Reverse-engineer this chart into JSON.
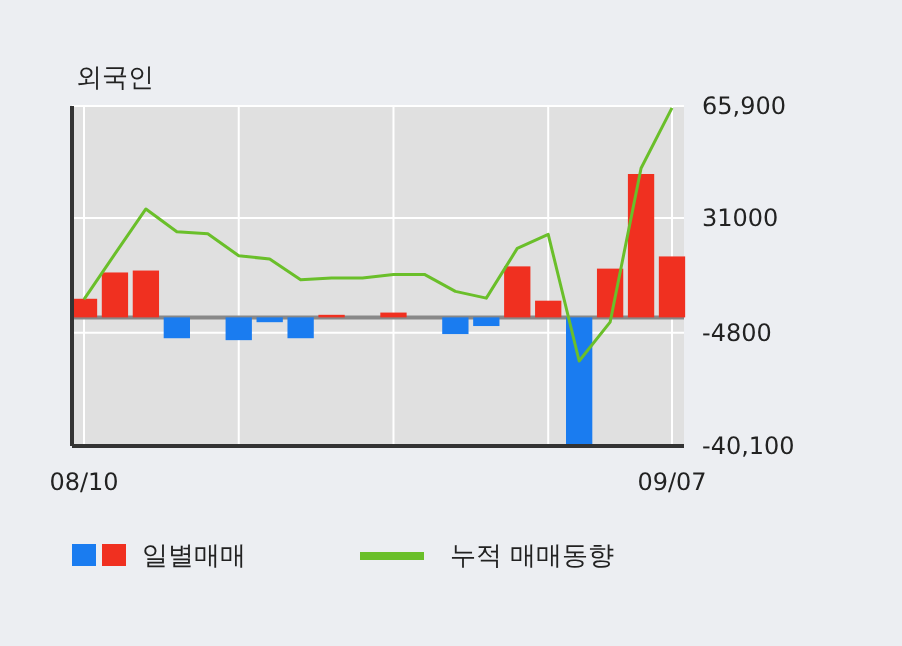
{
  "chart_data": {
    "type": "bar",
    "title": "외국인",
    "categories": [
      "08/10",
      null,
      null,
      null,
      null,
      null,
      null,
      null,
      null,
      null,
      null,
      null,
      null,
      null,
      null,
      null,
      null,
      null,
      null,
      "09/07"
    ],
    "series": [
      {
        "name": "일별매매",
        "colors": [
          "#f03020",
          "#f03020",
          "#f03020",
          "#1a7cf0",
          "#1a7cf0",
          "#1a7cf0",
          "#1a7cf0",
          "#1a7cf0",
          "#f03020",
          "#f03020",
          "#f03020",
          "#f03020",
          "#1a7cf0",
          "#1a7cf0",
          "#f03020",
          "#f03020",
          "#1a7cf0",
          "#f03020",
          "#f03020",
          "#f03020"
        ],
        "values": [
          5800,
          14000,
          14600,
          -6500,
          0,
          -7100,
          -1500,
          -6500,
          800,
          0,
          1500,
          0,
          -5200,
          -2700,
          15900,
          5200,
          -39700,
          15200,
          44700,
          19000
        ]
      },
      {
        "name": "누적 매매동향",
        "type": "line",
        "color": "#6abf2a",
        "values": [
          5600,
          19800,
          33800,
          26700,
          26100,
          19200,
          18200,
          11700,
          12300,
          12300,
          13400,
          13400,
          8100,
          6000,
          21500,
          25900,
          -13600,
          -1500,
          46500,
          65300
        ]
      }
    ],
    "ylim": [
      -40100,
      65900
    ],
    "yticks": [
      {
        "value": 65900,
        "label": "65,900"
      },
      31000,
      -4800,
      {
        "value": -40100,
        "label": "-40,100"
      }
    ],
    "ref_lines": [
      {
        "axis": "y",
        "value": 0,
        "color": "#888888"
      }
    ],
    "grid": true,
    "legend": "bottom"
  }
}
